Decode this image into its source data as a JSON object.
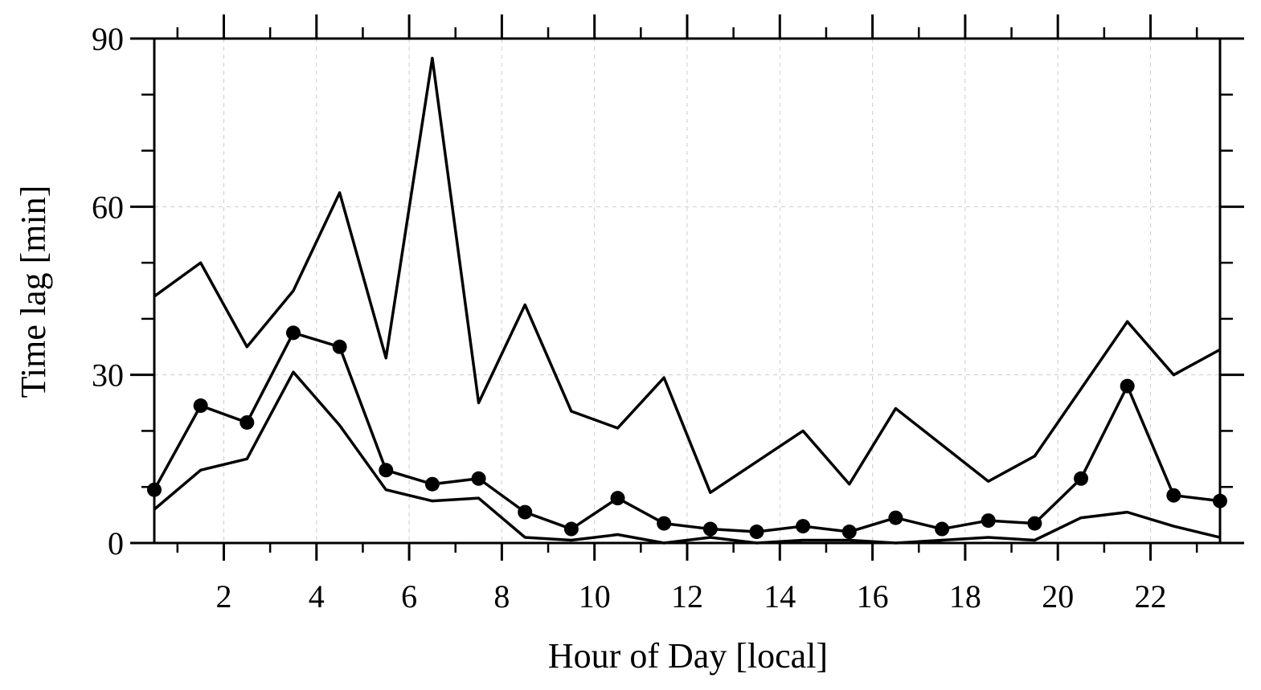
{
  "chart_data": {
    "type": "line",
    "xlabel": "Hour of Day [local]",
    "ylabel": "Time lag [min]",
    "xlim": [
      0.5,
      23.5
    ],
    "ylim": [
      0,
      90
    ],
    "xticks": [
      2,
      4,
      6,
      8,
      10,
      12,
      14,
      16,
      18,
      20,
      22
    ],
    "yticks": [
      0,
      30,
      60,
      90
    ],
    "grid": true,
    "x": [
      0.5,
      1.5,
      2.5,
      3.5,
      4.5,
      5.5,
      6.5,
      7.5,
      8.5,
      9.5,
      10.5,
      11.5,
      12.5,
      13.5,
      14.5,
      15.5,
      16.5,
      17.5,
      18.5,
      19.5,
      20.5,
      21.5,
      22.5,
      23.5
    ],
    "series": [
      {
        "style": "line",
        "color": "#000000",
        "values": [
          44,
          50,
          35,
          45,
          62.5,
          33,
          86.5,
          25,
          42.5,
          23.5,
          20.5,
          29.5,
          9,
          14.5,
          20,
          10.5,
          24,
          17.5,
          11,
          15.5,
          27.5,
          39.5,
          30,
          34.5
        ]
      },
      {
        "style": "line-marker",
        "color": "#000000",
        "values": [
          9.5,
          24.5,
          21.5,
          37.5,
          35,
          13,
          10.5,
          11.5,
          5.5,
          2.5,
          8,
          3.5,
          2.5,
          2,
          3,
          2,
          4.5,
          2.5,
          4,
          3.5,
          11.5,
          28,
          8.5,
          7.5
        ]
      },
      {
        "style": "line",
        "color": "#000000",
        "values": [
          6,
          13,
          15,
          30.5,
          21,
          9.5,
          7.5,
          8,
          1,
          0.5,
          1.5,
          0,
          1,
          0,
          0.5,
          0.5,
          0,
          0.5,
          1,
          0.5,
          4.5,
          5.5,
          3,
          1
        ]
      }
    ]
  }
}
